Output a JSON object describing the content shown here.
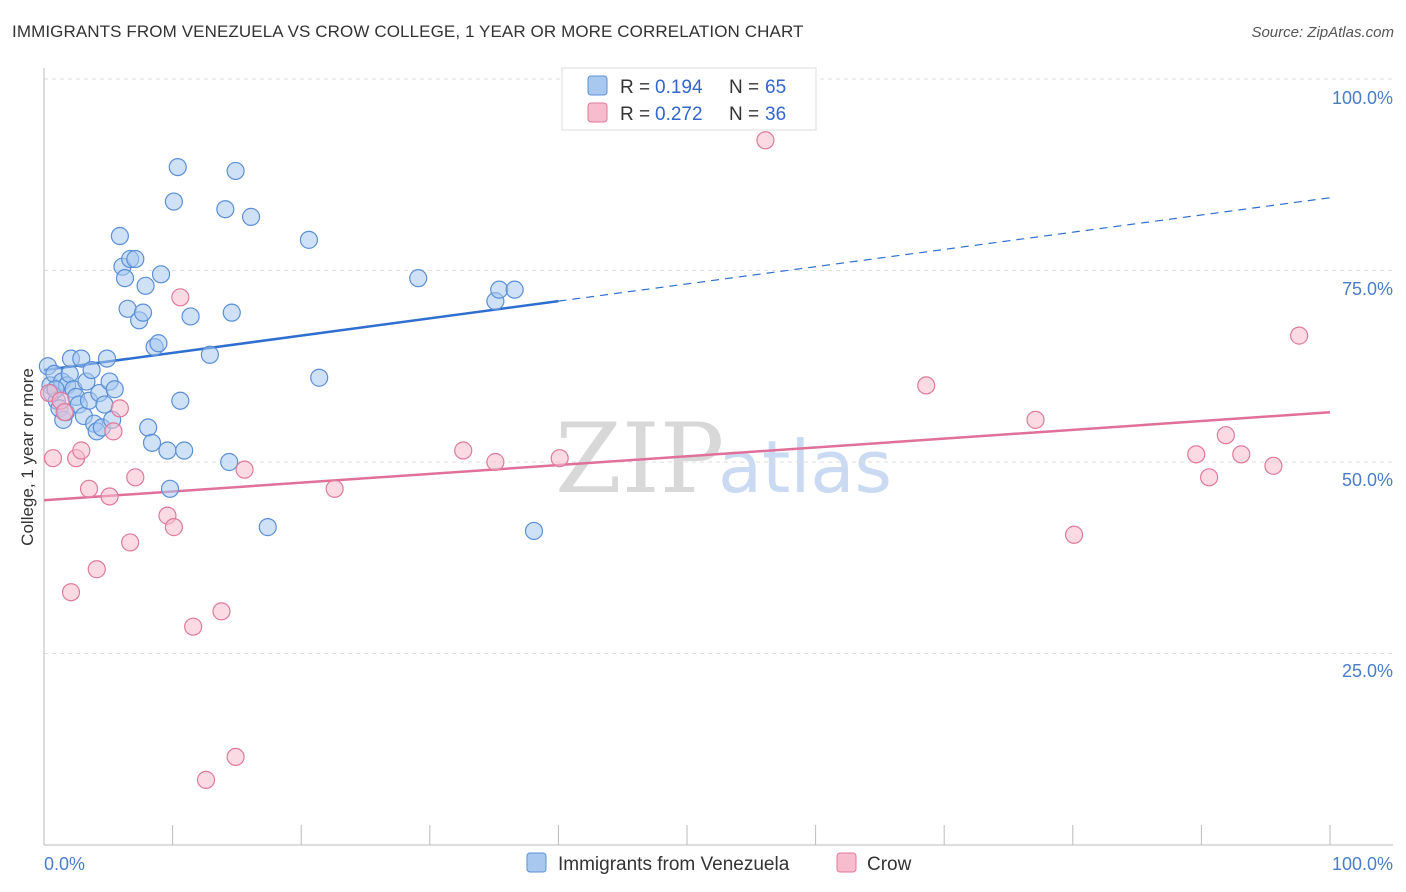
{
  "header": {
    "title": "IMMIGRANTS FROM VENEZUELA VS CROW COLLEGE, 1 YEAR OR MORE CORRELATION CHART",
    "source": "Source: ZipAtlas.com"
  },
  "watermark": {
    "zip": "ZIP",
    "atlas": "atlas"
  },
  "legend": {
    "rows": [
      {
        "r_label": "R =",
        "r_value": "0.194",
        "n_label": "N =",
        "n_value": "65",
        "color": "#a8c8f0",
        "stroke": "#5b8fd6"
      },
      {
        "r_label": "R =",
        "r_value": "0.272",
        "n_label": "N =",
        "n_value": "36",
        "color": "#f7bccd",
        "stroke": "#e07a9a"
      }
    ]
  },
  "chart_data": {
    "type": "scatter",
    "title": "IMMIGRANTS FROM VENEZUELA VS CROW COLLEGE, 1 YEAR OR MORE CORRELATION CHART",
    "xlabel": "",
    "ylabel": "College, 1 year or more",
    "xlim": [
      0,
      100
    ],
    "ylim": [
      0,
      100
    ],
    "x_tick_labels": [
      "0.0%",
      "100.0%"
    ],
    "y_tick_labels": [
      "100.0%",
      "75.0%",
      "50.0%",
      "25.0%"
    ],
    "y_tick_values": [
      100,
      75,
      50,
      25
    ],
    "colors": {
      "blue": "#5b8fd6",
      "blue_fill": "#a8c8f0",
      "pink": "#e07a9a",
      "pink_fill": "#f7bccd",
      "blue_line": "#2f6fd0",
      "pink_line": "#e0709a"
    },
    "series": [
      {
        "name": "Immigrants from Venezuela",
        "color": "#5b8fd6",
        "fill": "#a8c8f0",
        "trend": {
          "x0": 0,
          "y0": 62,
          "x1": 40,
          "y1": 71,
          "dash_to_x": 100,
          "dash_to_y": 84.5
        },
        "points": [
          [
            0.3,
            62.5
          ],
          [
            0.5,
            60
          ],
          [
            0.6,
            59
          ],
          [
            0.8,
            61.5
          ],
          [
            1.0,
            58
          ],
          [
            1.2,
            57
          ],
          [
            1.4,
            60.5
          ],
          [
            1.5,
            55.5
          ],
          [
            1.7,
            56.5
          ],
          [
            1.8,
            60
          ],
          [
            2.0,
            61.5
          ],
          [
            2.1,
            63.5
          ],
          [
            2.3,
            59.5
          ],
          [
            2.5,
            58.5
          ],
          [
            2.7,
            57.5
          ],
          [
            2.9,
            63.5
          ],
          [
            3.1,
            56
          ],
          [
            3.3,
            60.5
          ],
          [
            3.5,
            58
          ],
          [
            3.7,
            62
          ],
          [
            3.9,
            55
          ],
          [
            4.1,
            54
          ],
          [
            4.3,
            59
          ],
          [
            4.5,
            54.5
          ],
          [
            4.7,
            57.5
          ],
          [
            4.9,
            63.5
          ],
          [
            5.1,
            60.5
          ],
          [
            5.3,
            55.5
          ],
          [
            5.5,
            59.5
          ],
          [
            5.9,
            79.5
          ],
          [
            6.1,
            75.5
          ],
          [
            6.3,
            74
          ],
          [
            6.5,
            70
          ],
          [
            6.7,
            76.5
          ],
          [
            7.1,
            76.5
          ],
          [
            7.4,
            68.5
          ],
          [
            7.7,
            69.5
          ],
          [
            7.9,
            73
          ],
          [
            8.1,
            54.5
          ],
          [
            8.4,
            52.5
          ],
          [
            8.6,
            65
          ],
          [
            8.9,
            65.5
          ],
          [
            9.1,
            74.5
          ],
          [
            9.6,
            51.5
          ],
          [
            9.8,
            46.5
          ],
          [
            10.1,
            84
          ],
          [
            10.4,
            88.5
          ],
          [
            10.6,
            58
          ],
          [
            10.9,
            51.5
          ],
          [
            11.4,
            69
          ],
          [
            12.9,
            64
          ],
          [
            14.1,
            83
          ],
          [
            14.4,
            50
          ],
          [
            14.6,
            69.5
          ],
          [
            14.9,
            88
          ],
          [
            16.1,
            82
          ],
          [
            17.4,
            41.5
          ],
          [
            20.6,
            79
          ],
          [
            21.4,
            61
          ],
          [
            29.1,
            74
          ],
          [
            35.1,
            71
          ],
          [
            35.4,
            72.5
          ],
          [
            36.6,
            72.5
          ],
          [
            38.1,
            41
          ],
          [
            0.9,
            59.5
          ]
        ]
      },
      {
        "name": "Crow",
        "color": "#e07a9a",
        "fill": "#f7bccd",
        "trend": {
          "x0": 0,
          "y0": 45,
          "x1": 100,
          "y1": 56.5
        },
        "points": [
          [
            0.4,
            59
          ],
          [
            0.7,
            50.5
          ],
          [
            1.3,
            58
          ],
          [
            1.6,
            56.5
          ],
          [
            2.1,
            33
          ],
          [
            2.5,
            50.5
          ],
          [
            2.9,
            51.5
          ],
          [
            3.5,
            46.5
          ],
          [
            4.1,
            36
          ],
          [
            5.1,
            45.5
          ],
          [
            5.4,
            54
          ],
          [
            5.9,
            57
          ],
          [
            6.7,
            39.5
          ],
          [
            7.1,
            48
          ],
          [
            9.6,
            43
          ],
          [
            10.1,
            41.5
          ],
          [
            10.6,
            71.5
          ],
          [
            11.6,
            28.5
          ],
          [
            12.6,
            8.5
          ],
          [
            13.8,
            30.5
          ],
          [
            14.9,
            11.5
          ],
          [
            15.6,
            49
          ],
          [
            22.6,
            46.5
          ],
          [
            32.6,
            51.5
          ],
          [
            35.1,
            50
          ],
          [
            40.1,
            50.5
          ],
          [
            56.1,
            92
          ],
          [
            68.6,
            60
          ],
          [
            77.1,
            55.5
          ],
          [
            80.1,
            40.5
          ],
          [
            89.6,
            51
          ],
          [
            90.6,
            48
          ],
          [
            91.9,
            53.5
          ],
          [
            93.1,
            51
          ],
          [
            95.6,
            49.5
          ],
          [
            97.6,
            66.5
          ]
        ]
      }
    ]
  },
  "bottom_legend": {
    "items": [
      {
        "label": "Immigrants from Venezuela",
        "color": "#a8c8f0",
        "stroke": "#5b8fd6"
      },
      {
        "label": "Crow",
        "color": "#f7bccd",
        "stroke": "#e07a9a"
      }
    ]
  }
}
